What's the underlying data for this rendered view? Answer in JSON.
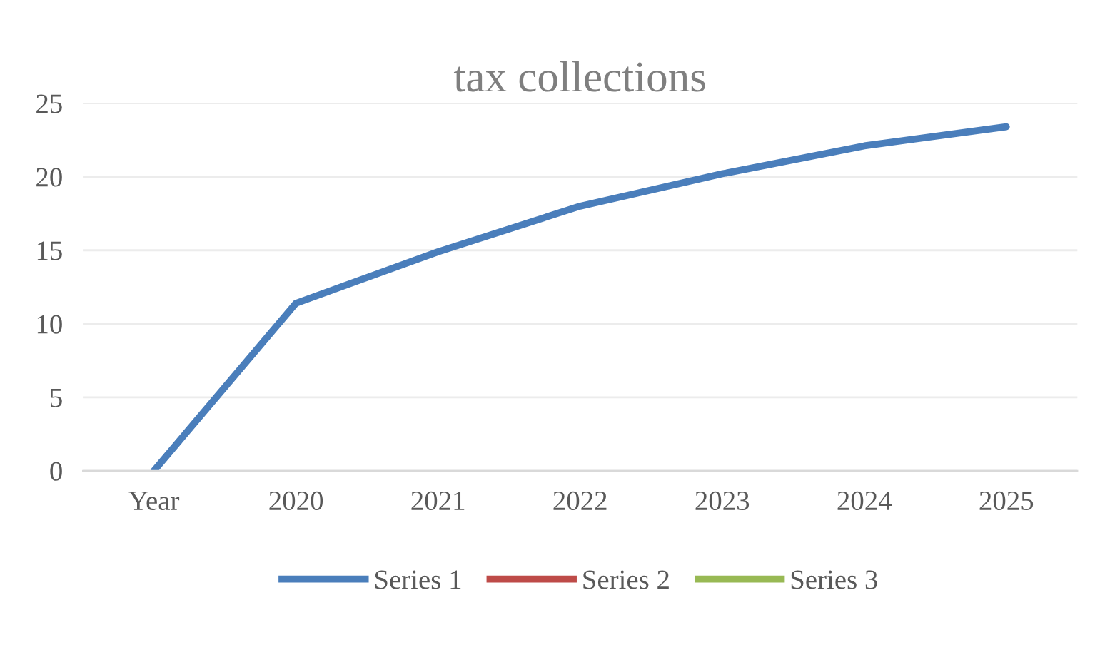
{
  "chart_data": {
    "type": "line",
    "title": "tax collections",
    "categories": [
      "Year",
      "2020",
      "2021",
      "2022",
      "2023",
      "2024",
      "2025"
    ],
    "series": [
      {
        "name": "Series 1",
        "color": "#4a7ebb",
        "values": [
          0,
          11.4,
          14.9,
          18.0,
          20.2,
          22.1,
          23.4
        ]
      },
      {
        "name": "Series 2",
        "color": "#be4b48",
        "values": [
          null,
          null,
          null,
          null,
          null,
          null,
          null
        ]
      },
      {
        "name": "Series 3",
        "color": "#98b954",
        "values": [
          null,
          null,
          null,
          null,
          null,
          null,
          null
        ]
      }
    ],
    "ylim": [
      0,
      25
    ],
    "yticks": [
      0,
      5,
      10,
      15,
      20,
      25
    ],
    "grid": "y",
    "legend": "bottom",
    "marker": "none",
    "line_style": "solid"
  }
}
